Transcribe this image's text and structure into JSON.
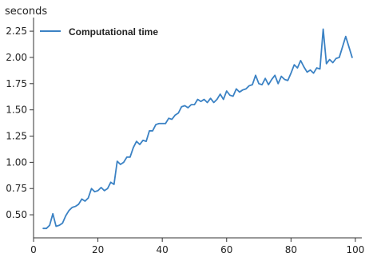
{
  "chart_data": {
    "type": "line",
    "title": "",
    "xlabel": "",
    "ylabel": "seconds",
    "xlim": [
      0,
      102
    ],
    "ylim": [
      0.28,
      2.38
    ],
    "xticks": [
      0,
      20,
      40,
      60,
      80,
      100
    ],
    "yticks": [
      0.5,
      0.75,
      1.0,
      1.25,
      1.5,
      1.75,
      2.0,
      2.25
    ],
    "xtick_labels": [
      "0",
      "20",
      "40",
      "60",
      "80",
      "100"
    ],
    "ytick_labels": [
      "0.50",
      "0.75",
      "1.00",
      "1.25",
      "1.50",
      "1.75",
      "2.00",
      "2.25"
    ],
    "grid": false,
    "legend": {
      "position": "top-left",
      "entries": [
        "Computational time"
      ]
    },
    "series": [
      {
        "name": "Computational time",
        "color": "#3b82c4",
        "x": [
          3,
          4,
          5,
          6,
          7,
          8,
          9,
          10,
          11,
          12,
          13,
          14,
          15,
          16,
          17,
          18,
          19,
          20,
          21,
          22,
          23,
          24,
          25,
          26,
          27,
          28,
          29,
          30,
          31,
          32,
          33,
          34,
          35,
          36,
          37,
          38,
          39,
          40,
          41,
          42,
          43,
          44,
          45,
          46,
          47,
          48,
          49,
          50,
          51,
          52,
          53,
          54,
          55,
          56,
          57,
          58,
          59,
          60,
          61,
          62,
          63,
          64,
          65,
          66,
          67,
          68,
          69,
          70,
          71,
          72,
          73,
          74,
          75,
          76,
          77,
          78,
          79,
          80,
          81,
          82,
          83,
          84,
          85,
          86,
          87,
          88,
          89,
          90,
          91,
          92,
          93,
          94,
          95,
          96,
          97,
          98,
          99
        ],
        "values": [
          0.37,
          0.37,
          0.4,
          0.51,
          0.39,
          0.4,
          0.42,
          0.49,
          0.54,
          0.57,
          0.58,
          0.6,
          0.65,
          0.63,
          0.66,
          0.75,
          0.72,
          0.73,
          0.76,
          0.73,
          0.75,
          0.81,
          0.79,
          1.01,
          0.98,
          1.0,
          1.05,
          1.05,
          1.14,
          1.2,
          1.17,
          1.21,
          1.2,
          1.3,
          1.3,
          1.36,
          1.37,
          1.37,
          1.37,
          1.42,
          1.41,
          1.45,
          1.47,
          1.53,
          1.54,
          1.52,
          1.55,
          1.55,
          1.6,
          1.58,
          1.6,
          1.57,
          1.61,
          1.57,
          1.6,
          1.65,
          1.6,
          1.68,
          1.64,
          1.63,
          1.7,
          1.67,
          1.69,
          1.7,
          1.73,
          1.74,
          1.83,
          1.75,
          1.74,
          1.8,
          1.74,
          1.79,
          1.83,
          1.75,
          1.82,
          1.79,
          1.78,
          1.85,
          1.93,
          1.9,
          1.97,
          1.91,
          1.86,
          1.88,
          1.85,
          1.9,
          1.89,
          2.27,
          1.94,
          1.98,
          1.95,
          1.99,
          2.0,
          2.1,
          2.2,
          2.1,
          2.0
        ]
      }
    ]
  }
}
